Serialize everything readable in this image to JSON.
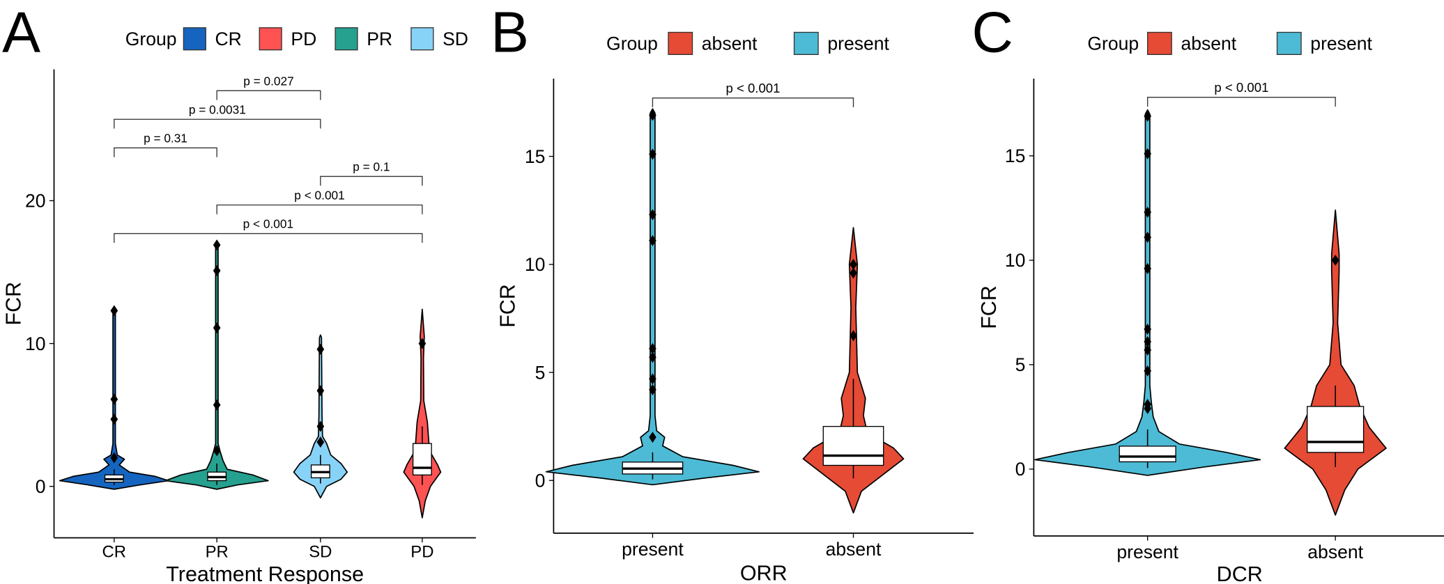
{
  "chart_data": [
    {
      "panel": "A",
      "type": "violin",
      "xlabel": "Treatment Response",
      "ylabel": "FCR",
      "ylim": [
        -3.6,
        29.2
      ],
      "yticks": [
        0,
        10,
        20
      ],
      "categories": [
        "CR",
        "PR",
        "SD",
        "PD"
      ],
      "legend": {
        "title": "Group",
        "position": "top",
        "items": [
          {
            "label": "CR",
            "color": "#1565C0"
          },
          {
            "label": "PD",
            "color": "#FF5252"
          },
          {
            "label": "PR",
            "color": "#26A08F"
          },
          {
            "label": "SD",
            "color": "#87D3F8"
          }
        ]
      },
      "series": [
        {
          "name": "CR",
          "color": "#1565C0",
          "violin": [
            [
              -0.2,
              0
            ],
            [
              0.1,
              0.25
            ],
            [
              0.4,
              0.53
            ],
            [
              0.7,
              0.4
            ],
            [
              1.0,
              0.15
            ],
            [
              1.5,
              0.05
            ],
            [
              1.9,
              0.1
            ],
            [
              2.2,
              0.03
            ],
            [
              3,
              0.012
            ],
            [
              12.4,
              0.012
            ],
            [
              12.6,
              0
            ]
          ],
          "box": {
            "q1": 0.3,
            "median": 0.5,
            "q3": 0.8,
            "lo": 0.1,
            "hi": 1.2
          },
          "outliers": [
            12.3,
            6.1,
            4.7,
            2.0
          ]
        },
        {
          "name": "PR",
          "color": "#26A08F",
          "violin": [
            [
              -0.2,
              0
            ],
            [
              0.1,
              0.2
            ],
            [
              0.4,
              0.5
            ],
            [
              0.8,
              0.35
            ],
            [
              1.2,
              0.1
            ],
            [
              1.8,
              0.06
            ],
            [
              2.5,
              0.03
            ],
            [
              3,
              0.012
            ],
            [
              17,
              0.012
            ],
            [
              17.2,
              0
            ]
          ],
          "box": {
            "q1": 0.4,
            "median": 0.65,
            "q3": 1.0,
            "lo": 0.1,
            "hi": 1.6
          },
          "outliers": [
            16.9,
            15.1,
            11.1,
            5.7,
            2.5
          ]
        },
        {
          "name": "SD",
          "color": "#87D3F8",
          "violin": [
            [
              -0.8,
              0
            ],
            [
              0,
              0.06
            ],
            [
              0.5,
              0.2
            ],
            [
              1.0,
              0.26
            ],
            [
              1.6,
              0.2
            ],
            [
              2.2,
              0.1
            ],
            [
              3,
              0.06
            ],
            [
              3.5,
              0.02
            ],
            [
              5,
              0.015
            ],
            [
              10.4,
              0.01
            ],
            [
              10.6,
              0
            ]
          ],
          "box": {
            "q1": 0.6,
            "median": 1.0,
            "q3": 1.5,
            "lo": 0.2,
            "hi": 2.2
          },
          "outliers": [
            9.6,
            6.7,
            4.2,
            3.1
          ]
        },
        {
          "name": "PD",
          "color": "#FF5252",
          "violin": [
            [
              -2.2,
              0
            ],
            [
              -1,
              0.03
            ],
            [
              0,
              0.08
            ],
            [
              1,
              0.18
            ],
            [
              1.5,
              0.15
            ],
            [
              2.5,
              0.07
            ],
            [
              3.5,
              0.06
            ],
            [
              4.5,
              0.05
            ],
            [
              6,
              0.015
            ],
            [
              9,
              0.012
            ],
            [
              10.5,
              0.02
            ],
            [
              12.4,
              0
            ]
          ],
          "box": {
            "q1": 0.8,
            "median": 1.3,
            "q3": 3.0,
            "lo": 0.1,
            "hi": 4.2
          },
          "outliers": [
            10.0
          ]
        }
      ],
      "comparisons": [
        {
          "from": "PR",
          "to": "SD",
          "label": "p = 0.027",
          "y": 27.7
        },
        {
          "from": "CR",
          "to": "SD",
          "label": "p = 0.0031",
          "y": 25.7
        },
        {
          "from": "CR",
          "to": "PR",
          "label": "p = 0.31",
          "y": 23.7
        },
        {
          "from": "SD",
          "to": "PD",
          "label": "p = 0.1",
          "y": 21.7
        },
        {
          "from": "PR",
          "to": "PD",
          "label": "p < 0.001",
          "y": 19.7
        },
        {
          "from": "CR",
          "to": "PD",
          "label": "p < 0.001",
          "y": 17.7
        }
      ]
    },
    {
      "panel": "B",
      "type": "violin",
      "xlabel": "ORR",
      "ylabel": "FCR",
      "ylim": [
        -2.44,
        18.6
      ],
      "yticks": [
        0,
        5,
        10,
        15
      ],
      "categories": [
        "present",
        "absent"
      ],
      "legend": {
        "title": "Group",
        "position": "top",
        "items": [
          {
            "label": "absent",
            "color": "#E64B35"
          },
          {
            "label": "present",
            "color": "#4DBBD5"
          }
        ]
      },
      "series": [
        {
          "name": "present",
          "color": "#4DBBD5",
          "violin": [
            [
              -0.2,
              0
            ],
            [
              0.1,
              0.25
            ],
            [
              0.4,
              0.53
            ],
            [
              0.7,
              0.4
            ],
            [
              1.1,
              0.15
            ],
            [
              1.6,
              0.05
            ],
            [
              2,
              0.06
            ],
            [
              2.3,
              0.02
            ],
            [
              3,
              0.012
            ],
            [
              17,
              0.012
            ],
            [
              17.2,
              0
            ]
          ],
          "box": {
            "q1": 0.3,
            "median": 0.55,
            "q3": 0.85,
            "lo": 0.05,
            "hi": 1.3
          },
          "outliers": [
            16.9,
            15.1,
            12.3,
            11.1,
            6.1,
            5.7,
            4.7,
            4.2,
            2.0
          ]
        },
        {
          "name": "absent",
          "color": "#E64B35",
          "violin": [
            [
              -1.5,
              0
            ],
            [
              -0.5,
              0.04
            ],
            [
              0.5,
              0.18
            ],
            [
              1,
              0.25
            ],
            [
              1.5,
              0.2
            ],
            [
              2.2,
              0.07
            ],
            [
              3,
              0.05
            ],
            [
              3.8,
              0.06
            ],
            [
              5,
              0.02
            ],
            [
              8,
              0.012
            ],
            [
              10,
              0.02
            ],
            [
              11.7,
              0
            ]
          ],
          "box": {
            "q1": 0.7,
            "median": 1.15,
            "q3": 2.5,
            "lo": 0.1,
            "hi": 4.7
          },
          "outliers": [
            10.0,
            9.6,
            6.7
          ]
        }
      ],
      "comparisons": [
        {
          "from": "present",
          "to": "absent",
          "label": "p < 0.001",
          "y": 17.7
        }
      ]
    },
    {
      "panel": "C",
      "type": "violin",
      "xlabel": "DCR",
      "ylabel": "FCR",
      "ylim": [
        -3.2,
        18.7
      ],
      "yticks": [
        0,
        5,
        10,
        15
      ],
      "categories": [
        "present",
        "absent"
      ],
      "legend": {
        "title": "Group",
        "position": "top",
        "items": [
          {
            "label": "absent",
            "color": "#E64B35"
          },
          {
            "label": "present",
            "color": "#4DBBD5"
          }
        ]
      },
      "series": [
        {
          "name": "present",
          "color": "#4DBBD5",
          "violin": [
            [
              -0.3,
              0
            ],
            [
              0.1,
              0.3
            ],
            [
              0.45,
              0.6
            ],
            [
              0.8,
              0.42
            ],
            [
              1.2,
              0.17
            ],
            [
              1.8,
              0.06
            ],
            [
              2.5,
              0.03
            ],
            [
              3.2,
              0.02
            ],
            [
              4,
              0.012
            ],
            [
              17,
              0.012
            ],
            [
              17.2,
              0
            ]
          ],
          "box": {
            "q1": 0.35,
            "median": 0.6,
            "q3": 1.1,
            "lo": 0.05,
            "hi": 1.9
          },
          "outliers": [
            16.9,
            15.1,
            12.3,
            11.1,
            9.6,
            6.7,
            6.1,
            5.7,
            4.7,
            3.1,
            2.9
          ]
        },
        {
          "name": "absent",
          "color": "#E64B35",
          "violin": [
            [
              -2.2,
              0
            ],
            [
              -1,
              0.05
            ],
            [
              0,
              0.12
            ],
            [
              1,
              0.27
            ],
            [
              2,
              0.18
            ],
            [
              3,
              0.13
            ],
            [
              4,
              0.1
            ],
            [
              5,
              0.03
            ],
            [
              7,
              0.012
            ],
            [
              9.5,
              0.02
            ],
            [
              10.3,
              0.02
            ],
            [
              12.4,
              0
            ]
          ],
          "box": {
            "q1": 0.8,
            "median": 1.3,
            "q3": 3.0,
            "lo": 0.1,
            "hi": 4.0
          },
          "outliers": [
            10.0
          ]
        }
      ],
      "comparisons": [
        {
          "from": "present",
          "to": "absent",
          "label": "p < 0.001",
          "y": 17.8
        }
      ]
    }
  ]
}
